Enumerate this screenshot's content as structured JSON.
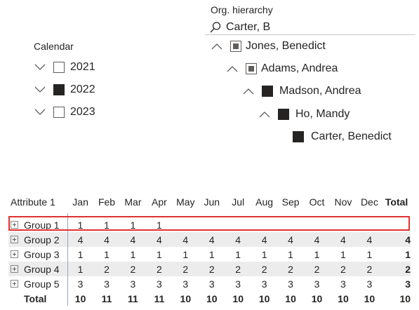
{
  "calendar": {
    "title": "Calendar",
    "items": [
      {
        "label": "2021",
        "state": "unchecked"
      },
      {
        "label": "2022",
        "state": "checked"
      },
      {
        "label": "2023",
        "state": "unchecked"
      }
    ]
  },
  "org": {
    "title": "Org. hierarchy",
    "search_text": "Carter, B",
    "items": [
      {
        "label": "Jones, Benedict",
        "state": "partial",
        "expanded": true
      },
      {
        "label": "Adams, Andrea",
        "state": "partial",
        "expanded": true
      },
      {
        "label": "Madson, Andrea",
        "state": "checked",
        "expanded": true
      },
      {
        "label": "Ho, Mandy",
        "state": "checked",
        "expanded": true
      },
      {
        "label": "Carter, Benedict",
        "state": "checked",
        "expanded": false
      }
    ]
  },
  "matrix": {
    "header": {
      "attribute": "Attribute 1",
      "months": [
        "Jan",
        "Feb",
        "Mar",
        "Apr",
        "May",
        "Jun",
        "Jul",
        "Aug",
        "Sep",
        "Oct",
        "Nov",
        "Dec"
      ],
      "total": "Total"
    },
    "rows": [
      {
        "label": "Group 1",
        "values": [
          "1",
          "1",
          "1",
          "1",
          "",
          "",
          "",
          "",
          "",
          "",
          "",
          ""
        ],
        "total": ""
      },
      {
        "label": "Group 2",
        "values": [
          "4",
          "4",
          "4",
          "4",
          "4",
          "4",
          "4",
          "4",
          "4",
          "4",
          "4",
          "4"
        ],
        "total": "4"
      },
      {
        "label": "Group 3",
        "values": [
          "1",
          "1",
          "1",
          "1",
          "1",
          "1",
          "1",
          "1",
          "1",
          "1",
          "1",
          "1"
        ],
        "total": "1"
      },
      {
        "label": "Group 4",
        "values": [
          "1",
          "2",
          "2",
          "2",
          "2",
          "2",
          "2",
          "2",
          "2",
          "2",
          "2",
          "2"
        ],
        "total": "2"
      },
      {
        "label": "Group 5",
        "values": [
          "3",
          "3",
          "3",
          "3",
          "3",
          "3",
          "3",
          "3",
          "3",
          "3",
          "3",
          "3"
        ],
        "total": "3"
      }
    ],
    "totals": {
      "label": "Total",
      "values": [
        "10",
        "11",
        "11",
        "11",
        "10",
        "10",
        "10",
        "10",
        "10",
        "10",
        "10",
        "10"
      ],
      "total": "10"
    },
    "highlight_color": "#e03131"
  }
}
